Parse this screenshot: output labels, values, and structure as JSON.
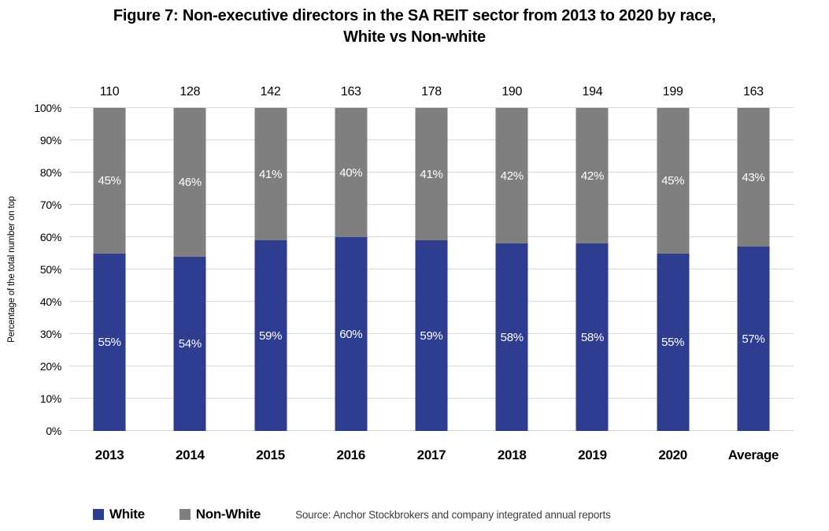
{
  "figure": {
    "title_line1": "Figure 7: Non-executive directors in the SA REIT sector from 2013 to 2020 by race,",
    "title_line2": "White vs Non-white"
  },
  "chart_data": {
    "type": "bar",
    "stacked": true,
    "orientation": "vertical",
    "title": "Figure 7: Non-executive directors in the SA REIT sector from 2013 to 2020 by race, White vs Non-white",
    "categories": [
      "2013",
      "2014",
      "2015",
      "2016",
      "2017",
      "2018",
      "2019",
      "2020",
      "Average"
    ],
    "series": [
      {
        "name": "White",
        "color": "#2E3D8F",
        "values": [
          55,
          54,
          59,
          60,
          59,
          58,
          58,
          55,
          57
        ],
        "labels": [
          "55%",
          "54%",
          "59%",
          "60%",
          "59%",
          "58%",
          "58%",
          "55%",
          "57%"
        ]
      },
      {
        "name": "Non-White",
        "color": "#7F7F7F",
        "values": [
          45,
          46,
          41,
          40,
          41,
          42,
          42,
          45,
          43
        ],
        "labels": [
          "45%",
          "46%",
          "41%",
          "40%",
          "41%",
          "42%",
          "42%",
          "45%",
          "43%"
        ]
      }
    ],
    "totals": [
      "110",
      "128",
      "142",
      "163",
      "178",
      "190",
      "194",
      "199",
      "163"
    ],
    "ylabel": "Percentage of the total number on top",
    "yticks": [
      "0%",
      "10%",
      "20%",
      "30%",
      "40%",
      "50%",
      "60%",
      "70%",
      "80%",
      "90%",
      "100%"
    ],
    "ylim": [
      0,
      100
    ],
    "grid": "horizontal",
    "gridline_color": "#D9D9D9",
    "bar_label_color": "#FFFFFF",
    "legend_position": "bottom-left",
    "source": "Source: Anchor Stockbrokers and company integrated annual reports"
  }
}
